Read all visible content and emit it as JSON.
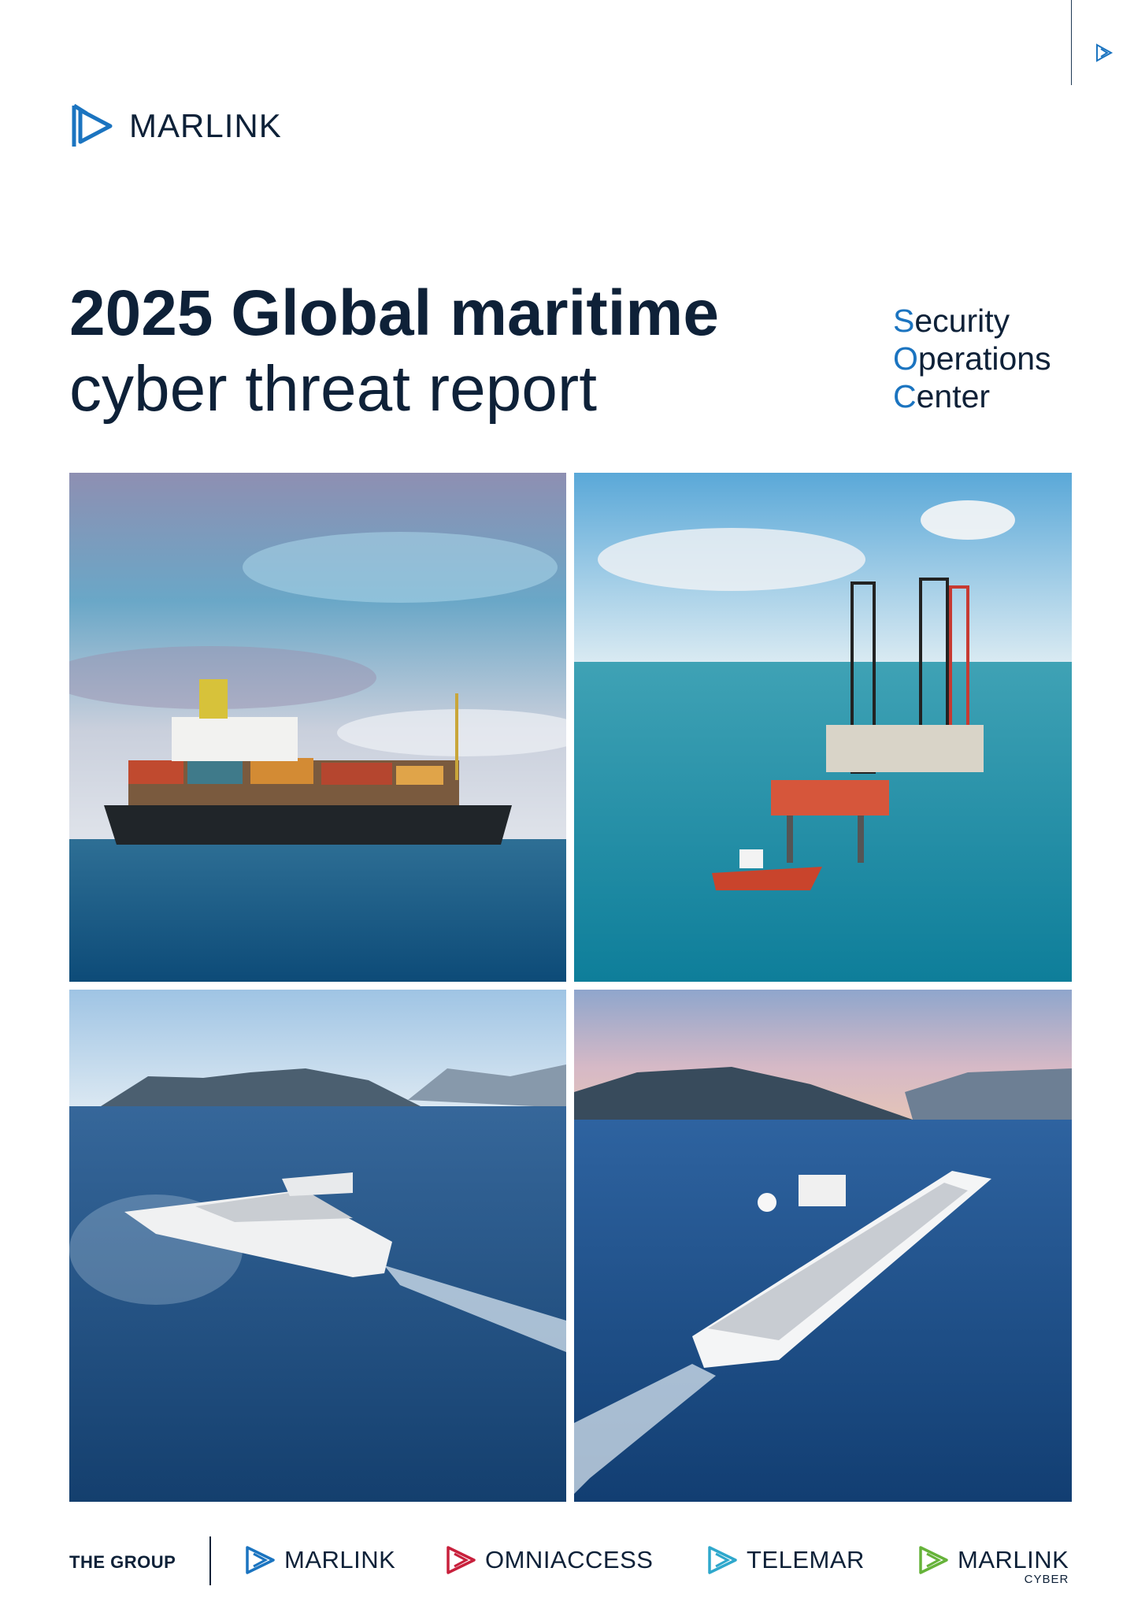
{
  "header": {
    "logo_text": "MARLINK",
    "brand_color": "#1b74c0"
  },
  "title": {
    "line1": "2025 Global maritime",
    "line2": "cyber threat report"
  },
  "soc": {
    "line1_initial": "S",
    "line1_rest": "ecurity",
    "line2_initial": "O",
    "line2_rest": "perations",
    "line3_initial": "C",
    "line3_rest": "enter"
  },
  "photos": [
    {
      "subject": "container-ship"
    },
    {
      "subject": "offshore-oil-rig"
    },
    {
      "subject": "motor-yacht"
    },
    {
      "subject": "cruise-ship"
    }
  ],
  "footer": {
    "group_label": "THE GROUP",
    "brands": [
      {
        "name": "MARLINK",
        "color": "#1b74c0"
      },
      {
        "name": "OMNIACCESS",
        "color": "#c8203c"
      },
      {
        "name": "TELEMAR",
        "color": "#2fa8cc"
      },
      {
        "name": "MARLINK",
        "sub": "CYBER",
        "color": "#66b33a"
      }
    ]
  }
}
